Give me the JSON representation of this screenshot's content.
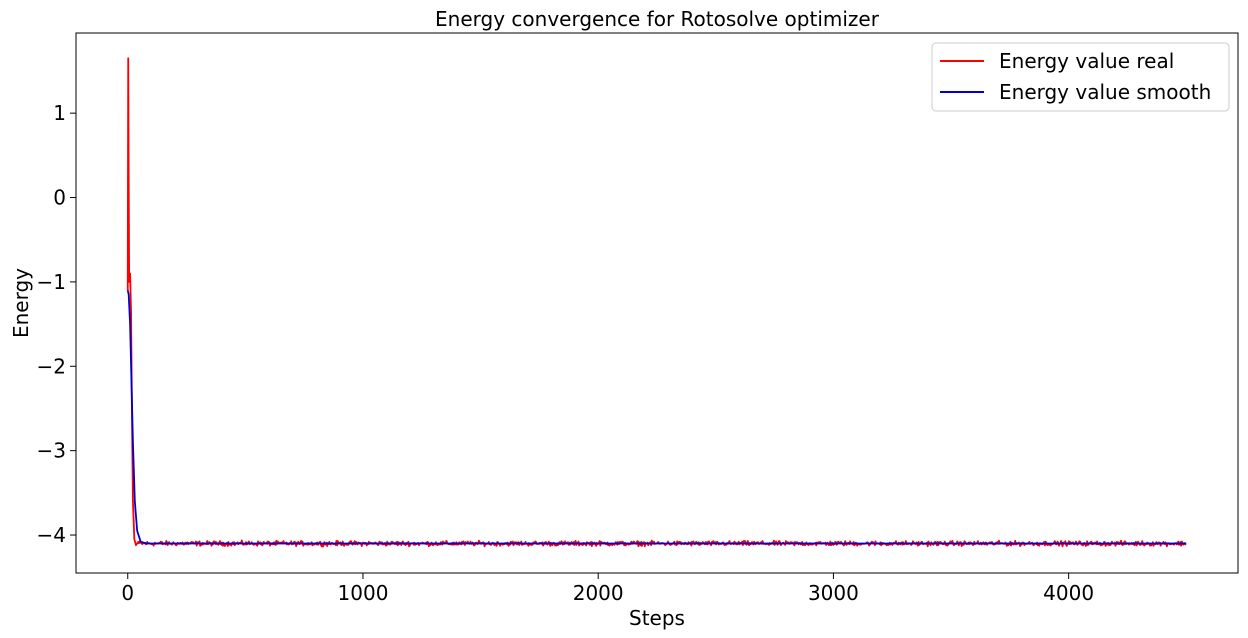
{
  "chart_data": {
    "type": "line",
    "title": "Energy convergence for Rotosolve optimizer",
    "xlabel": "Steps",
    "ylabel": "Energy",
    "xlim": [
      -220,
      4720
    ],
    "ylim": [
      -4.45,
      1.95
    ],
    "x_ticks": [
      0,
      1000,
      2000,
      3000,
      4000
    ],
    "y_ticks": [
      1,
      0,
      -1,
      -2,
      -3,
      -4
    ],
    "y_tick_labels": [
      "1",
      "0",
      "−1",
      "−2",
      "−3",
      "−4"
    ],
    "grid": false,
    "legend_position": "top-right",
    "x_max": 4500,
    "series": [
      {
        "name": "Energy value real",
        "color": "#ff0000",
        "points": [
          [
            0,
            -1.1
          ],
          [
            2,
            1.65
          ],
          [
            4,
            0.2
          ],
          [
            6,
            -1.0
          ],
          [
            10,
            -0.9
          ],
          [
            14,
            -1.35
          ],
          [
            18,
            -2.6
          ],
          [
            22,
            -3.6
          ],
          [
            28,
            -4.05
          ],
          [
            35,
            -4.12
          ],
          [
            45,
            -4.08
          ]
        ],
        "noise_baseline": -4.1,
        "noise_amplitude": 0.04
      },
      {
        "name": "Energy value smooth",
        "color": "#0000cc",
        "points": [
          [
            0,
            -1.1
          ],
          [
            4,
            -1.15
          ],
          [
            10,
            -1.5
          ],
          [
            16,
            -2.2
          ],
          [
            22,
            -2.9
          ],
          [
            30,
            -3.6
          ],
          [
            40,
            -3.95
          ],
          [
            55,
            -4.08
          ],
          [
            80,
            -4.1
          ],
          [
            4500,
            -4.1
          ]
        ]
      }
    ]
  }
}
